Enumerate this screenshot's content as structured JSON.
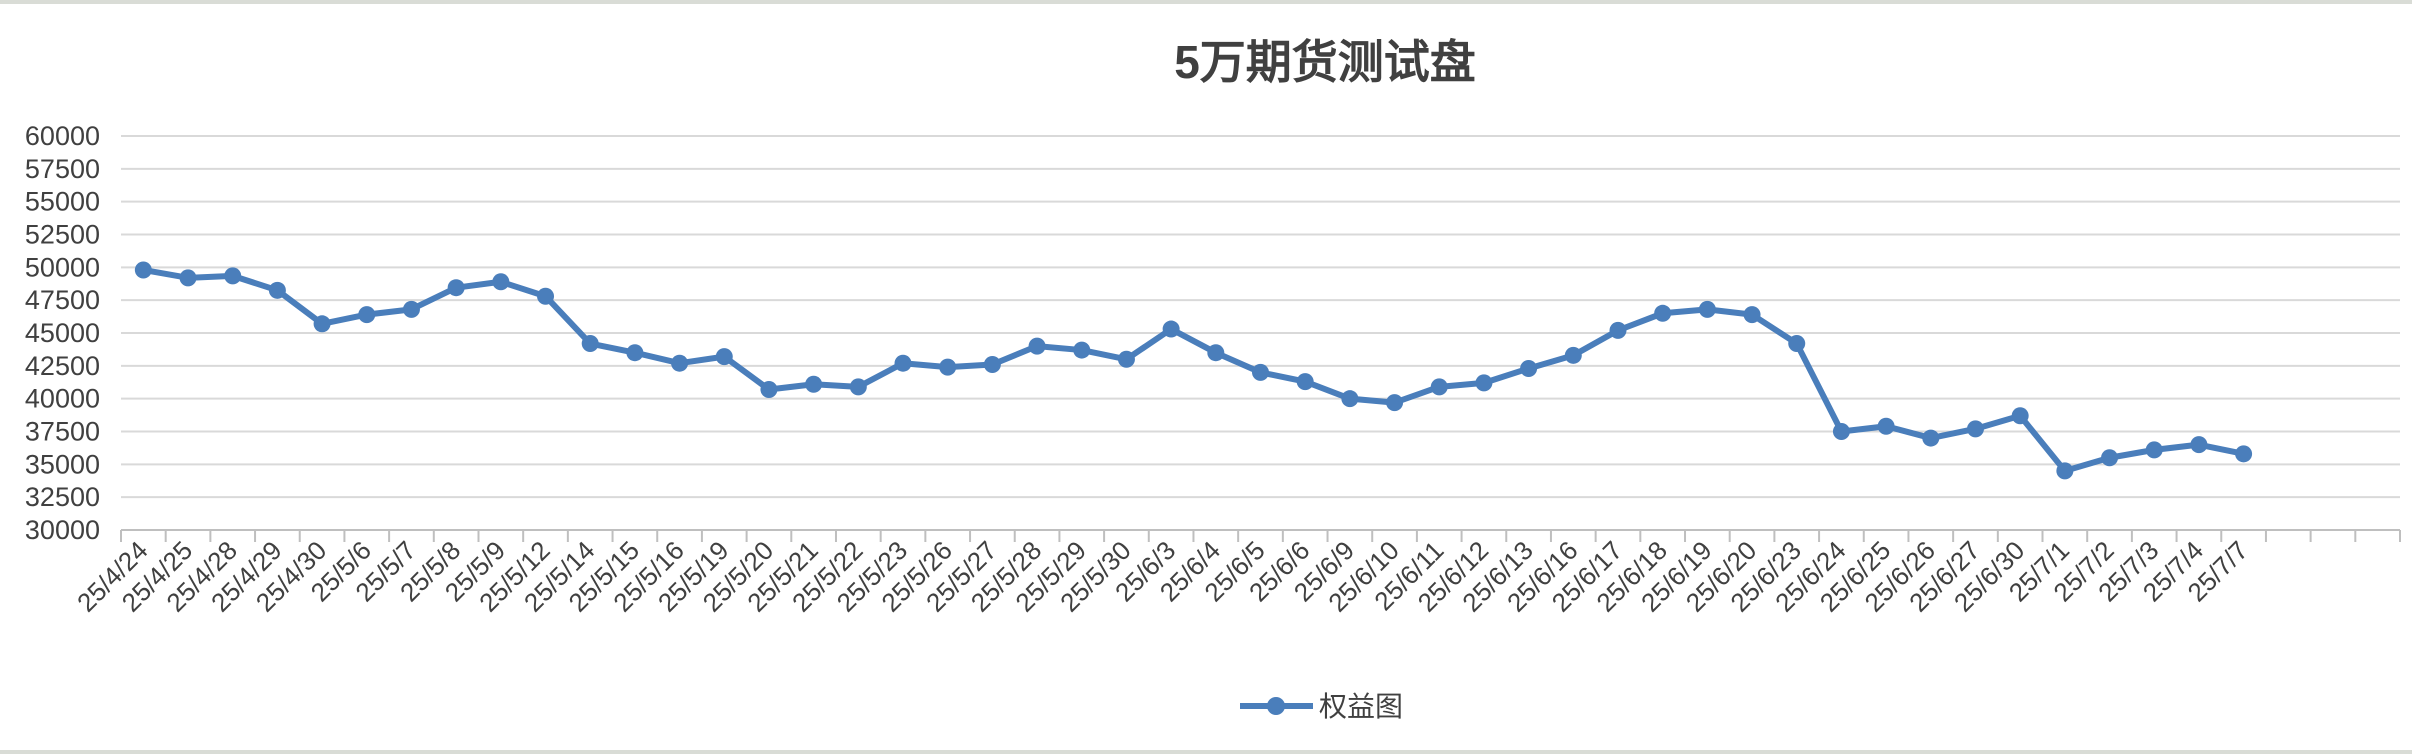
{
  "chart_data": {
    "type": "line",
    "title": "5万期货测试盘",
    "xlabel": "",
    "ylabel": "",
    "ylim": [
      30000,
      60000
    ],
    "ytick_step": 2500,
    "grid": true,
    "legend_position": "bottom",
    "categories": [
      "25/4/24",
      "25/4/25",
      "25/4/28",
      "25/4/29",
      "25/4/30",
      "25/5/6",
      "25/5/7",
      "25/5/8",
      "25/5/9",
      "25/5/12",
      "25/5/14",
      "25/5/15",
      "25/5/16",
      "25/5/19",
      "25/5/20",
      "25/5/21",
      "25/5/22",
      "25/5/23",
      "25/5/26",
      "25/5/27",
      "25/5/28",
      "25/5/29",
      "25/5/30",
      "25/6/3",
      "25/6/4",
      "25/6/5",
      "25/6/6",
      "25/6/9",
      "25/6/10",
      "25/6/11",
      "25/6/12",
      "25/6/13",
      "25/6/16",
      "25/6/17",
      "25/6/18",
      "25/6/19",
      "25/6/20",
      "25/6/23",
      "25/6/24",
      "25/6/25",
      "25/6/26",
      "25/6/27",
      "25/6/30",
      "25/7/1",
      "25/7/2",
      "25/7/3",
      "25/7/4",
      "25/7/7"
    ],
    "extra_empty_slots": 3,
    "series": [
      {
        "name": "权益图",
        "color": "#4a7ebb",
        "values": [
          49800,
          49200,
          49350,
          48250,
          45700,
          46400,
          46800,
          48450,
          48900,
          47800,
          44200,
          43500,
          42700,
          43200,
          40700,
          41100,
          40900,
          42700,
          42400,
          42600,
          44000,
          43700,
          43000,
          45300,
          43500,
          42000,
          41300,
          40000,
          39700,
          40900,
          41200,
          42300,
          43300,
          45200,
          46500,
          46800,
          46400,
          44200,
          37500,
          37900,
          37000,
          37700,
          38700,
          34500,
          35500,
          36100,
          36500,
          35800
        ]
      }
    ]
  }
}
